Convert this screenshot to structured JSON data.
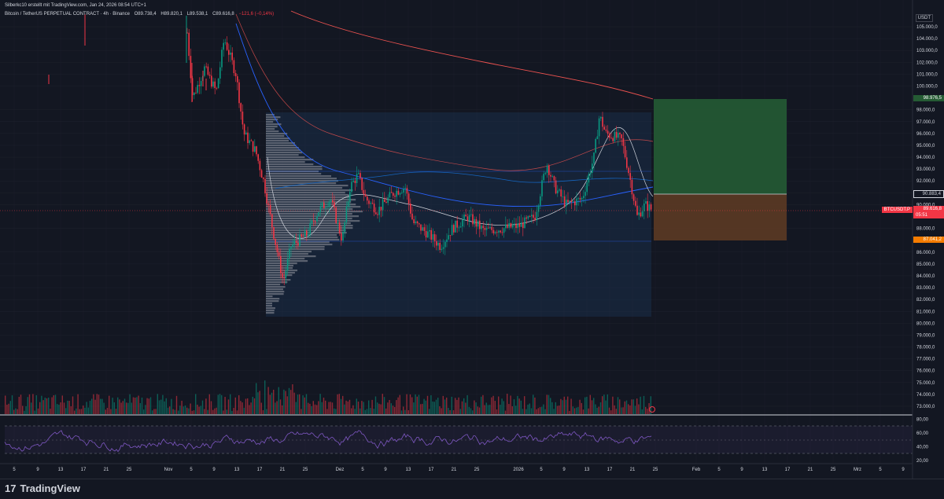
{
  "header": {
    "line1": "Silberkc10 erstellt mit TradingView.com, Jan 24, 2026 08:54 UTC+1",
    "symbol": "Bitcoin / TetherUS PERPETUAL CONTRACT · 4h · Binance",
    "open": "O89.738,4",
    "high": "H89.820,1",
    "low": "L89.538,1",
    "close": "C89.616,8",
    "change": "−121,6 (−0,14%)"
  },
  "price_axis": {
    "currency": "USDT",
    "labels": [
      "105.000,0",
      "104.000,0",
      "103.000,0",
      "102.000,0",
      "101.000,0",
      "100.000,0",
      "98.976,5",
      "98.000,0",
      "97.000,0",
      "96.000,0",
      "95.000,0",
      "94.000,0",
      "93.000,0",
      "92.000,0",
      "91.000,0",
      "90.883,4",
      "90.000,0",
      "BTCUSDT.P",
      "89.616,8",
      "05:51",
      "88.000,0",
      "87.041,2",
      "86.000,0",
      "85.000,0",
      "84.000,0",
      "83.000,0",
      "82.000,0",
      "81.000,0",
      "80.000,0",
      "79.000,0",
      "78.000,0",
      "77.000,0",
      "76.000,0",
      "75.000,0",
      "74.000,0",
      "73.000,0"
    ],
    "target_tag": "98.976,5",
    "entry_tag": "90.883,4",
    "stop_tag": "87.041,2",
    "symbol_tag": "BTCUSDT.P",
    "last_price_tag": "89.616,8",
    "countdown_tag": "05:51"
  },
  "rsi_axis": {
    "labels": [
      "80,00",
      "60,00",
      "40,00",
      "20,00"
    ]
  },
  "time_axis": {
    "labels": [
      "5",
      "9",
      "13",
      "17",
      "21",
      "25",
      "Nov",
      "5",
      "9",
      "13",
      "17",
      "21",
      "25",
      "Dez",
      "5",
      "9",
      "13",
      "17",
      "21",
      "25",
      "2026",
      "5",
      "9",
      "13",
      "17",
      "21",
      "25",
      "Feb",
      "5",
      "9",
      "13",
      "17",
      "21",
      "25",
      "Mrz",
      "5",
      "9"
    ]
  },
  "footer": {
    "brand": "TradingView",
    "logo_glyph": "17"
  },
  "colors": {
    "background": "#131722",
    "up": "#089981",
    "down": "#f23645",
    "target_zone": "#255b34",
    "stop_zone": "#5c3a24",
    "rsi": "#7e57c2",
    "ma_long": "#ef5350",
    "ma_mid": "#2962ff"
  }
}
